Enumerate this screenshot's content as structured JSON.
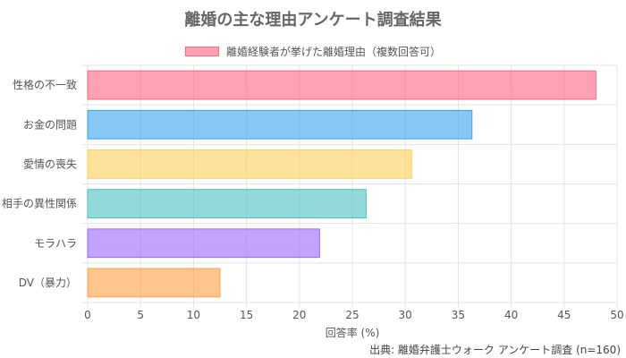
{
  "chart_data": {
    "type": "bar",
    "orientation": "horizontal",
    "title": "離婚の主な理由アンケート調査結果",
    "categories": [
      "性格の不一致",
      "お金の問題",
      "愛情の喪失",
      "相手の異性関係",
      "モラハラ",
      "DV（暴力）"
    ],
    "series": [
      {
        "name": "離婚経験者が挙げた離婚理由（複数回答可）",
        "values": [
          48,
          36.3,
          30.6,
          26.3,
          21.9,
          12.5
        ]
      }
    ],
    "bar_colors": [
      {
        "fill": "rgba(255,99,132,0.6)",
        "stroke": "#ff6384"
      },
      {
        "fill": "rgba(54,162,235,0.6)",
        "stroke": "#36a2eb"
      },
      {
        "fill": "rgba(255,206,86,0.6)",
        "stroke": "#ffce56"
      },
      {
        "fill": "rgba(75,192,192,0.6)",
        "stroke": "#4bc0c0"
      },
      {
        "fill": "rgba(153,102,255,0.6)",
        "stroke": "#9966ff"
      },
      {
        "fill": "rgba(255,159,64,0.6)",
        "stroke": "#ff9f40"
      }
    ],
    "xlabel": "回答率 (%)",
    "ylabel": "",
    "xlim": [
      0,
      50
    ],
    "x_ticks": [
      0,
      5,
      10,
      15,
      20,
      25,
      30,
      35,
      40,
      45,
      50
    ],
    "grid": true,
    "legend_position": "top",
    "source": "出典: 離婚弁護士ウォーク アンケート調査 (n=160)"
  }
}
